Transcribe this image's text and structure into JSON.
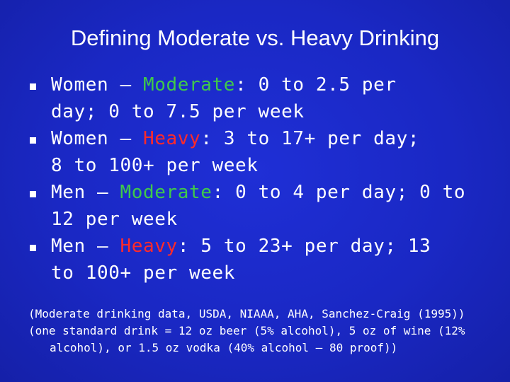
{
  "slide": {
    "title": "Defining Moderate vs. Heavy Drinking",
    "bullets": [
      {
        "prefix": "Women – ",
        "keyword": "Moderate",
        "line1_rest": ": 0 to 2.5 per",
        "line2": "day; 0 to 7.5 per week"
      },
      {
        "prefix": "Women – ",
        "keyword": "Heavy",
        "line1_rest": ": 3 to 17+ per day;",
        "line2": "8 to 100+ per week"
      },
      {
        "prefix": "Men – ",
        "keyword": "Moderate",
        "line1_rest": ": 0 to 4 per day; 0 to",
        "line2": "12 per week"
      },
      {
        "prefix": "Men – ",
        "keyword": "Heavy",
        "line1_rest": ": 5 to 23+ per day; 13",
        "line2": "to 100+ per week"
      }
    ],
    "notes": {
      "line1": "(Moderate drinking data, USDA, NIAAA, AHA, Sanchez-Craig (1995))",
      "line2": "(one standard drink = 12 oz beer (5% alcohol), 5 oz of wine (12%",
      "line3": "alcohol), or 1.5 oz vodka (40% alcohol – 80 proof))"
    }
  },
  "colors": {
    "background": "#1a28c4",
    "text": "#ffffff",
    "moderate": "#3fc94a",
    "heavy": "#ff2a2a"
  }
}
